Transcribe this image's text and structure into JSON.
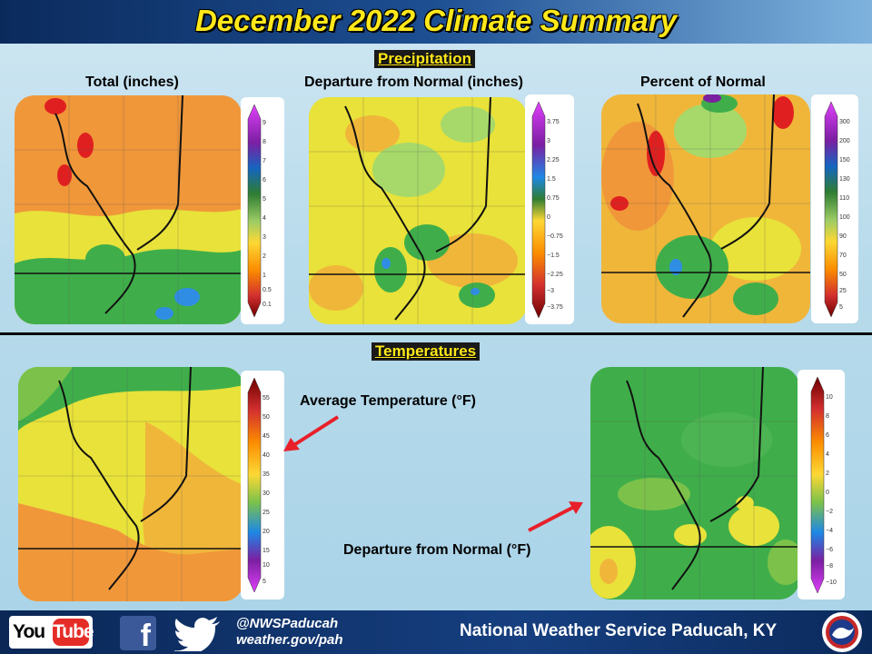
{
  "header": {
    "title": "December 2022 Climate Summary"
  },
  "precipitation": {
    "section_label": "Precipitation",
    "maps": [
      {
        "title": "Total (inches)",
        "legend_labels": [
          "9",
          "8",
          "7",
          "6",
          "5",
          "4",
          "3",
          "2",
          "1",
          "0.5",
          "0.1"
        ]
      },
      {
        "title": "Departure  from Normal (inches)",
        "legend_labels": [
          "3.75",
          "3",
          "2.25",
          "1.5",
          "0.75",
          "0",
          "−0.75",
          "−1.5",
          "−2.25",
          "−3",
          "−3.75"
        ]
      },
      {
        "title": "Percent of Normal",
        "legend_labels": [
          "300",
          "200",
          "150",
          "130",
          "110",
          "100",
          "90",
          "70",
          "50",
          "25",
          "5"
        ]
      }
    ]
  },
  "temperatures": {
    "section_label": "Temperatures",
    "avg_legend_labels": [
      "55",
      "50",
      "45",
      "40",
      "35",
      "30",
      "25",
      "20",
      "15",
      "10",
      "5"
    ],
    "dep_legend_labels": [
      "10",
      "8",
      "6",
      "4",
      "2",
      "0",
      "−2",
      "−4",
      "−6",
      "−8",
      "−10"
    ],
    "avg_callout": "Average Temperature (°F)",
    "dep_callout": "Departure  from Normal (°F)"
  },
  "footer": {
    "youtube_you": "You",
    "youtube_tube": "Tube",
    "facebook_glyph": "f",
    "twitter_handle": "@NWSPaducah",
    "website": "weather.gov/pah",
    "office": "National Weather Service Paducah, KY"
  },
  "colors": {
    "title_yellow": "#ffe81a",
    "header_navy": "#0b2a5c",
    "arrow_red": "#e8202a",
    "map_orange": "#f0973a",
    "map_yellow": "#e8e23a",
    "map_green": "#3fae4a",
    "map_blue": "#2f8de4",
    "map_red": "#e02020"
  },
  "icons": [
    "youtube-logo",
    "facebook-icon",
    "twitter-bird-icon",
    "nws-logo",
    "red-arrow-icon"
  ]
}
